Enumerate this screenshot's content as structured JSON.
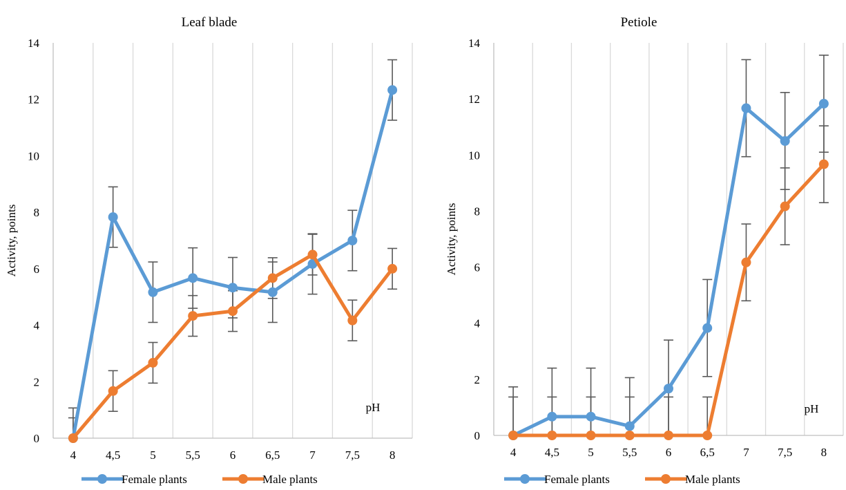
{
  "colors": {
    "female": "#5B9BD5",
    "male": "#ED7D31",
    "grid": "#D9D9D9",
    "axis": "#BFBFBF",
    "error": "#595959"
  },
  "chart_data": [
    {
      "type": "line",
      "title": "Leaf blade",
      "xlabel": "",
      "ylabel": "Activity, points",
      "annotation": "pH",
      "categories": [
        "4",
        "4,5",
        "5",
        "5,5",
        "6",
        "6,5",
        "7",
        "7,5",
        "8"
      ],
      "ylim": [
        0,
        14
      ],
      "yticks": [
        "0",
        "2",
        "4",
        "6",
        "8",
        "10",
        "12",
        "14"
      ],
      "grid": "vertical",
      "legend_position": "bottom",
      "series": [
        {
          "name": "Female plants",
          "color": "#5B9BD5",
          "values": [
            0,
            7.83,
            5.17,
            5.67,
            5.33,
            5.17,
            6.17,
            7.0,
            12.33
          ],
          "errors": [
            1.07,
            1.07,
            1.07,
            1.07,
            1.07,
            1.07,
            1.07,
            1.07,
            1.07
          ]
        },
        {
          "name": "Male plants",
          "color": "#ED7D31",
          "values": [
            0,
            1.67,
            2.67,
            4.33,
            4.5,
            5.67,
            6.5,
            4.17,
            6.0
          ],
          "errors": [
            0.72,
            0.72,
            0.72,
            0.72,
            0.72,
            0.72,
            0.72,
            0.72,
            0.72
          ]
        }
      ]
    },
    {
      "type": "line",
      "title": "Petiole",
      "xlabel": "",
      "ylabel": "Activity, points",
      "annotation": "pH",
      "categories": [
        "4",
        "4,5",
        "5",
        "5,5",
        "6",
        "6,5",
        "7",
        "7,5",
        "8"
      ],
      "ylim": [
        0,
        14
      ],
      "yticks": [
        "0",
        "2",
        "4",
        "6",
        "8",
        "10",
        "12",
        "14"
      ],
      "grid": "vertical",
      "legend_position": "bottom",
      "series": [
        {
          "name": "Female plants",
          "color": "#5B9BD5",
          "values": [
            0,
            0.67,
            0.67,
            0.33,
            1.67,
            3.83,
            11.67,
            10.5,
            11.83
          ],
          "errors": [
            1.73,
            1.73,
            1.73,
            1.73,
            1.73,
            1.73,
            1.73,
            1.73,
            1.73
          ]
        },
        {
          "name": "Male plants",
          "color": "#ED7D31",
          "values": [
            0,
            0,
            0,
            0,
            0,
            0,
            6.17,
            8.17,
            9.67
          ],
          "errors": [
            1.37,
            1.37,
            1.37,
            1.37,
            1.37,
            1.37,
            1.37,
            1.37,
            1.37
          ]
        }
      ]
    }
  ]
}
